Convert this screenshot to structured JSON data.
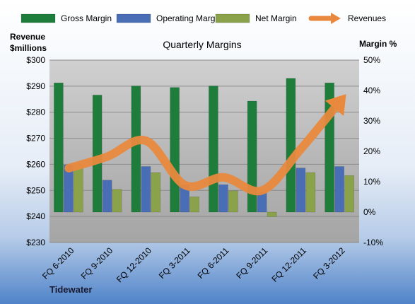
{
  "chart_data": {
    "type": "bar",
    "title": "Quarterly Margins",
    "company": "Tidewater",
    "left_axis_title_line1": "Revenue",
    "left_axis_title_line2": "$millions",
    "right_axis_title": "Margin %",
    "categories": [
      "FQ 6-2010",
      "FQ 9-2010",
      "FQ 12-2010",
      "FQ 3-2011",
      "FQ 6-2011",
      "FQ 9-2011",
      "FQ 12-2011",
      "FQ 3-2012"
    ],
    "left_ylim": [
      230,
      300
    ],
    "left_ticks": [
      "$230",
      "$240",
      "$250",
      "$260",
      "$270",
      "$280",
      "$290",
      "$300"
    ],
    "right_ylim": [
      -10,
      50
    ],
    "right_ticks": [
      "-10%",
      "0%",
      "10%",
      "20%",
      "30%",
      "40%",
      "50%"
    ],
    "series": [
      {
        "name": "Gross Margin",
        "kind": "bar",
        "axis": "right",
        "color": "#1e7d3a",
        "values": [
          42.5,
          38.5,
          41.5,
          41,
          41.5,
          36.5,
          44,
          42.5
        ]
      },
      {
        "name": "Operating Margin",
        "kind": "bar",
        "axis": "right",
        "color": "#4a6eb5",
        "values": [
          15.5,
          10.5,
          15,
          9,
          9,
          6.5,
          14.5,
          15
        ]
      },
      {
        "name": "Net Margin",
        "kind": "bar",
        "axis": "right",
        "color": "#8aa24a",
        "values": [
          15.5,
          7.5,
          13,
          5,
          7,
          -1.5,
          13,
          12
        ]
      },
      {
        "name": "Revenues",
        "kind": "line",
        "axis": "left",
        "color": "#e8893d",
        "values": [
          258.5,
          263,
          269,
          252,
          255,
          250,
          266,
          284
        ]
      }
    ],
    "grid": true,
    "legend_position": "top"
  }
}
